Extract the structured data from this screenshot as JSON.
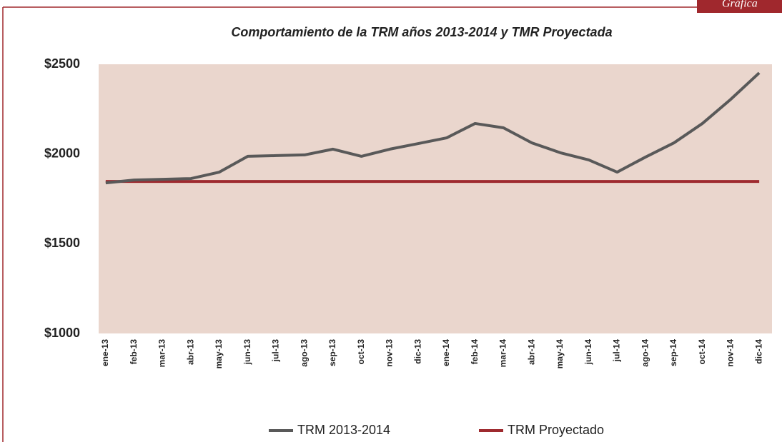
{
  "tab_label": "Gráfica",
  "chart_data": {
    "type": "line",
    "title": "Comportamiento de la TRM años 2013-2014 y TMR Proyectada",
    "categories": [
      "ene-13",
      "feb-13",
      "mar-13",
      "abr-13",
      "may-13",
      "jun-13",
      "jul-13",
      "ago-13",
      "sep-13",
      "oct-13",
      "nov-13",
      "dic-13",
      "ene-14",
      "feb-14",
      "mar-14",
      "abr-14",
      "may-14",
      "jun-14",
      "jul-14",
      "ago-14",
      "sep-14",
      "oct-14",
      "nov-14",
      "dic-14"
    ],
    "series": [
      {
        "name": "TRM 2013-2014",
        "color": "#595959",
        "values": [
          1839,
          1855,
          1859,
          1863,
          1899,
          1987,
          1991,
          1995,
          2027,
          1987,
          2027,
          2058,
          2090,
          2170,
          2146,
          2062,
          2007,
          1967,
          1899,
          1983,
          2062,
          2170,
          2305,
          2452
        ]
      },
      {
        "name": "TRM Proyectado",
        "color": "#9e2a2f",
        "values": [
          1847,
          1847,
          1847,
          1847,
          1847,
          1847,
          1847,
          1847,
          1847,
          1847,
          1847,
          1847,
          1847,
          1847,
          1847,
          1847,
          1847,
          1847,
          1847,
          1847,
          1847,
          1847,
          1847,
          1847
        ]
      }
    ],
    "ylim": [
      1000,
      2500
    ],
    "yticks": [
      {
        "value": 1000,
        "label": "$1000"
      },
      {
        "value": 1500,
        "label": "$1500"
      },
      {
        "value": 2000,
        "label": "$2000"
      },
      {
        "value": 2500,
        "label": "$2500"
      }
    ],
    "grid": false,
    "legend": "bottom"
  }
}
